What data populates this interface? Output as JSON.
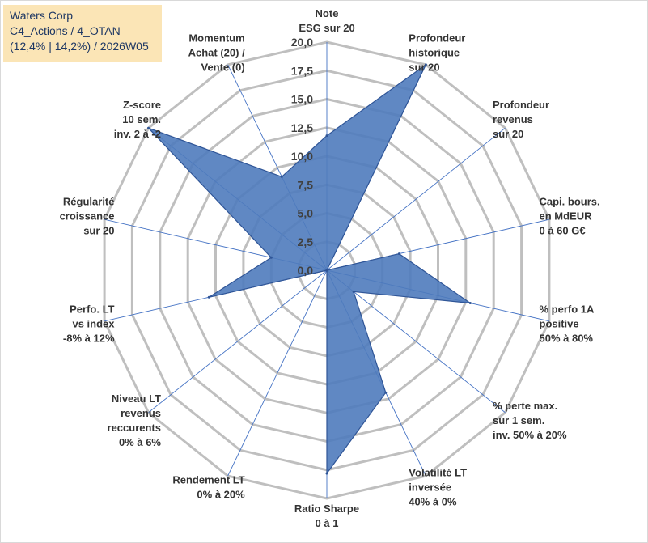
{
  "info": {
    "company": "Waters Corp",
    "portfolio": "C4_Actions / 4_OTAN",
    "stats": "(12,4% | 14,2%) / 2026W05"
  },
  "colors": {
    "fill": "#4f7bbd",
    "stroke": "#2f5597",
    "grid": "#bfbfbf",
    "spoke": "#4472c4",
    "background_box": "#fbe5b6"
  },
  "chart_data": {
    "type": "radar",
    "title": "",
    "rmax": 20,
    "rings": 8,
    "tick_labels": [
      "0,0",
      "2,5",
      "5,0",
      "7,5",
      "10,0",
      "12,5",
      "15,0",
      "17,5",
      "20,0"
    ],
    "axes": [
      {
        "label": [
          "Note",
          "ESG sur 20"
        ],
        "value": 11.8
      },
      {
        "label": [
          "Profondeur",
          "historique",
          "sur 20"
        ],
        "value": 20.0
      },
      {
        "label": [
          "Profondeur",
          "revenus",
          "sur 20"
        ],
        "value": 0.0
      },
      {
        "label": [
          "Capi. bours.",
          "en MdEUR",
          "0 à 60 G€"
        ],
        "value": 6.5
      },
      {
        "label": [
          "% perfo 1A",
          "positive",
          "50% à 80%"
        ],
        "value": 12.9
      },
      {
        "label": [
          "% perte max.",
          "sur 1 sem.",
          "inv. 50% à 20%"
        ],
        "value": 3.0
      },
      {
        "label": [
          "Volatilité LT",
          "inversée",
          "40% à 0%"
        ],
        "value": 11.9
      },
      {
        "label": [
          "Ratio Sharpe",
          "0 à 1"
        ],
        "value": 17.8
      },
      {
        "label": [
          "Rendement LT",
          "0% à 20%"
        ],
        "value": 0.0
      },
      {
        "label": [
          "Niveau LT",
          "revenus",
          "reccurents",
          "0% à 6%"
        ],
        "value": 0.0
      },
      {
        "label": [
          "Perfo. LT",
          "vs index",
          "-8% à 12%"
        ],
        "value": 10.6
      },
      {
        "label": [
          "Régularité",
          "croissance",
          "sur 20"
        ],
        "value": 5.0
      },
      {
        "label": [
          "Z-score",
          "10 sem.",
          "inv. 2 à -2"
        ],
        "value": 20.0
      },
      {
        "label": [
          "Momentum",
          "Achat (20) /",
          "Vente (0)"
        ],
        "value": 9.1
      }
    ]
  }
}
